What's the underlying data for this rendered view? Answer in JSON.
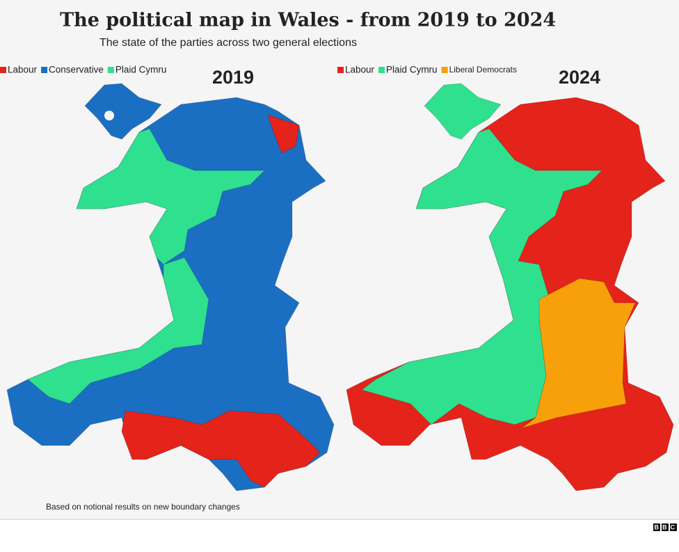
{
  "header": {
    "title": "The political map in Wales - from 2019 to 2024",
    "subtitle": "The state of the parties across two general elections"
  },
  "maps": [
    {
      "year": "2019",
      "legend": [
        {
          "name": "Labour",
          "color": "#e4231b"
        },
        {
          "name": "Conservative",
          "color": "#1b6fc2"
        },
        {
          "name": "Plaid Cymru",
          "color": "#2fe08f"
        }
      ]
    },
    {
      "year": "2024",
      "legend": [
        {
          "name": "Labour",
          "color": "#e4231b"
        },
        {
          "name": "Plaid Cymru",
          "color": "#2fe08f"
        },
        {
          "name": "Liberal Democrats",
          "color": "#f7a00a"
        }
      ]
    }
  ],
  "footnote": "Based on notional results on new boundary changes",
  "logo": "BBC"
}
